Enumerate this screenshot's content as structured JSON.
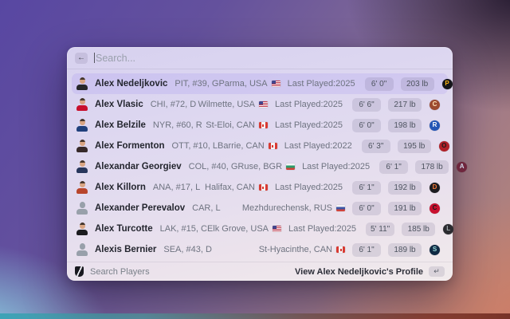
{
  "search": {
    "placeholder": "Search...",
    "back_icon": "←"
  },
  "players": [
    {
      "name": "Alex Nedeljkovic",
      "details": "PIT, #39, G",
      "birthplace": "Parma, USA",
      "flag": "USA",
      "last_played": "Last Played:2025",
      "height": "6' 0\"",
      "weight": "203 lb",
      "team": "PIT",
      "logo": {
        "letter": "P",
        "bg": "#15151a",
        "fg": "#fcb514"
      },
      "jersey": "#27272b",
      "generic_avatar": false,
      "selected": true
    },
    {
      "name": "Alex Vlasic",
      "details": "CHI, #72, D",
      "birthplace": "Wilmette, USA",
      "flag": "USA",
      "last_played": "Last Played:2025",
      "height": "6' 6\"",
      "weight": "217 lb",
      "team": "CHI",
      "logo": {
        "letter": "C",
        "bg": "#9c4a30",
        "fg": "#ffe1b5"
      },
      "jersey": "#c8102e",
      "generic_avatar": false,
      "selected": false
    },
    {
      "name": "Alex Belzile",
      "details": "NYR, #60, R",
      "birthplace": "St-Eloi, CAN",
      "flag": "CAN",
      "last_played": "Last Played:2025",
      "height": "6' 0\"",
      "weight": "198 lb",
      "team": "NYR",
      "logo": {
        "letter": "R",
        "bg": "#2456b5",
        "fg": "#ffffff"
      },
      "jersey": "#20407c",
      "generic_avatar": false,
      "selected": false
    },
    {
      "name": "Alex Formenton",
      "details": "OTT, #10, L",
      "birthplace": "Barrie, CAN",
      "flag": "CAN",
      "last_played": "Last Played:2022",
      "height": "6' 3\"",
      "weight": "195 lb",
      "team": "OTT",
      "logo": {
        "letter": "O",
        "bg": "#b02028",
        "fg": "#1a1a1a"
      },
      "jersey": "#37292a",
      "generic_avatar": false,
      "selected": false
    },
    {
      "name": "Alexandar Georgiev",
      "details": "COL, #40, G",
      "birthplace": "Ruse, BGR",
      "flag": "BGR",
      "last_played": "Last Played:2025",
      "height": "6' 1\"",
      "weight": "178 lb",
      "team": "COL",
      "logo": {
        "letter": "A",
        "bg": "#6f263d",
        "fg": "#cfd8e8"
      },
      "jersey": "#27365c",
      "generic_avatar": false,
      "selected": false
    },
    {
      "name": "Alex Killorn",
      "details": "ANA, #17, L",
      "birthplace": "Halifax, CAN",
      "flag": "CAN",
      "last_played": "Last Played:2025",
      "height": "6' 1\"",
      "weight": "192 lb",
      "team": "ANA",
      "logo": {
        "letter": "D",
        "bg": "#1c1c20",
        "fg": "#f47a38"
      },
      "jersey": "#b8452c",
      "generic_avatar": false,
      "selected": false
    },
    {
      "name": "Alexander Perevalov",
      "details": "CAR, L",
      "birthplace": "Mezhdurechensk, RUS",
      "flag": "RUS",
      "last_played": "",
      "height": "6' 0\"",
      "weight": "191 lb",
      "team": "CAR",
      "logo": {
        "letter": "C",
        "bg": "#c8102e",
        "fg": "#1a1a1a"
      },
      "jersey": "#98a0aa",
      "generic_avatar": true,
      "selected": false
    },
    {
      "name": "Alex Turcotte",
      "details": "LAK, #15, C",
      "birthplace": "Elk Grove, USA",
      "flag": "USA",
      "last_played": "Last Played:2025",
      "height": "5' 11\"",
      "weight": "185 lb",
      "team": "LAK",
      "logo": {
        "letter": "L",
        "bg": "#2b2b30",
        "fg": "#a2aaad"
      },
      "jersey": "#1b1b1f",
      "generic_avatar": false,
      "selected": false
    },
    {
      "name": "Alexis Bernier",
      "details": "SEA, #43, D",
      "birthplace": "St-Hyacinthe, CAN",
      "flag": "CAN",
      "last_played": "",
      "height": "6' 1\"",
      "weight": "189 lb",
      "team": "SEA",
      "logo": {
        "letter": "S",
        "bg": "#0f2a44",
        "fg": "#99d9d9"
      },
      "jersey": "#98a0aa",
      "generic_avatar": true,
      "selected": false
    }
  ],
  "footer": {
    "app_label": "Search Players",
    "action_label": "View Alex Nedeljkovic's Profile",
    "enter_icon": "↵"
  }
}
